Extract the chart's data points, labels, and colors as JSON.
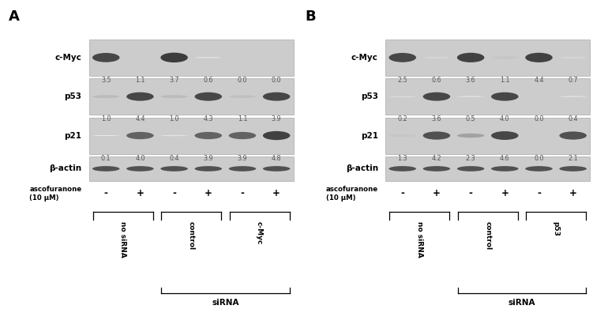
{
  "panel_A": {
    "label": "A",
    "rows": [
      "c-Myc",
      "p53",
      "p21",
      "β-actin"
    ],
    "n_lanes": 6,
    "values": {
      "c-Myc": [
        "3.5",
        "1.1",
        "3.7",
        "0.6",
        "0.0",
        "0.0"
      ],
      "p53": [
        "1.0",
        "4.4",
        "1.0",
        "4.3",
        "1.1",
        "3.9"
      ],
      "p21": [
        "0.1",
        "4.0",
        "0.4",
        "3.9",
        "3.9",
        "4.8"
      ]
    },
    "band_intensity": {
      "c-Myc": [
        0.85,
        0.22,
        0.9,
        0.14,
        0.0,
        0.0
      ],
      "p53": [
        0.3,
        0.85,
        0.3,
        0.85,
        0.28,
        0.85
      ],
      "p21": [
        0.08,
        0.72,
        0.1,
        0.72,
        0.72,
        0.88
      ],
      "beta-actin": [
        0.8,
        0.8,
        0.8,
        0.8,
        0.8,
        0.8
      ]
    },
    "ascofuranone": [
      "-",
      "+",
      "-",
      "+",
      "-",
      "+"
    ],
    "groups": [
      {
        "label": "no siRNA",
        "lanes": [
          0,
          1
        ],
        "sirna": false
      },
      {
        "label": "control",
        "lanes": [
          2,
          3
        ],
        "sirna": true
      },
      {
        "label": "c-Myc",
        "lanes": [
          4,
          5
        ],
        "sirna": true
      }
    ],
    "sirna_label": "siRNA"
  },
  "panel_B": {
    "label": "B",
    "rows": [
      "c-Myc",
      "p53",
      "p21",
      "β-actin"
    ],
    "n_lanes": 6,
    "values": {
      "c-Myc": [
        "2.5",
        "0.6",
        "3.6",
        "1.1",
        "4.4",
        "0.7"
      ],
      "p53": [
        "0.2",
        "3.6",
        "0.5",
        "4.0",
        "0.0",
        "0.4"
      ],
      "p21": [
        "1.3",
        "4.2",
        "2.3",
        "4.6",
        "0.0",
        "2.1"
      ]
    },
    "band_intensity": {
      "c-Myc": [
        0.85,
        0.18,
        0.88,
        0.25,
        0.88,
        0.18
      ],
      "p53": [
        0.05,
        0.85,
        0.1,
        0.85,
        0.0,
        0.1
      ],
      "p21": [
        0.25,
        0.8,
        0.42,
        0.85,
        0.0,
        0.8
      ],
      "beta-actin": [
        0.8,
        0.8,
        0.8,
        0.8,
        0.8,
        0.8
      ]
    },
    "ascofuranone": [
      "-",
      "+",
      "-",
      "+",
      "-",
      "+"
    ],
    "groups": [
      {
        "label": "no siRNA",
        "lanes": [
          0,
          1
        ],
        "sirna": false
      },
      {
        "label": "control",
        "lanes": [
          2,
          3
        ],
        "sirna": true
      },
      {
        "label": "p53",
        "lanes": [
          4,
          5
        ],
        "sirna": true
      }
    ],
    "sirna_label": "siRNA"
  },
  "bg_color": "#cccccc",
  "fig_bg": "#ffffff"
}
